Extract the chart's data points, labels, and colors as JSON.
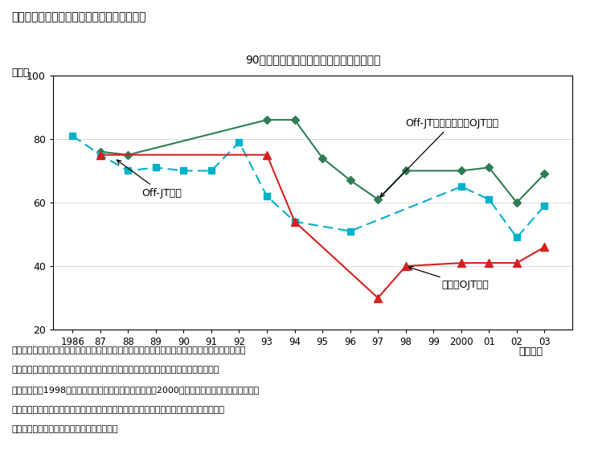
{
  "title": "第３－２－７図　職業教育訓練実施率の推移",
  "subtitle": "90年代に職業教育訓練実施率は大きく低下",
  "ylabel": "（％）",
  "xlabel": "（年度）",
  "ylim": [
    20,
    100
  ],
  "yticks": [
    20,
    40,
    60,
    80,
    100
  ],
  "green_line": {
    "label": "Off-JTまたは計画的OJT実施",
    "color": "#2e7d54",
    "x": [
      1987,
      1988,
      1993,
      1994,
      1995,
      1996,
      1997,
      1998,
      2000,
      2001,
      2002,
      2003
    ],
    "y": [
      76,
      75,
      86,
      86,
      74,
      67,
      61,
      70,
      70,
      71,
      60,
      69
    ]
  },
  "cyan_line": {
    "label": "Off-JT実施",
    "color": "#00b0c8",
    "x": [
      1986,
      1987,
      1988,
      1989,
      1990,
      1991,
      1992,
      1993,
      1994,
      1996,
      2000,
      2001,
      2002,
      2003
    ],
    "y": [
      81,
      75,
      70,
      71,
      70,
      70,
      79,
      62,
      54,
      51,
      65,
      61,
      49,
      59
    ]
  },
  "red_line": {
    "label": "計画的OJT実施",
    "color": "#d42020",
    "x": [
      1987,
      1993,
      1994,
      1997,
      1998,
      2000,
      2001,
      2002,
      2003
    ],
    "y": [
      75,
      75,
      54,
      30,
      40,
      41,
      41,
      41,
      46
    ]
  },
  "ann_offjt_label": "Off-JT実施",
  "ann_green_label": "Off-JTまたは計画的OJT実施",
  "ann_red_label": "計画的OJT実施",
  "note_lines": [
    "（備考）１．厚生労働省「能力開発基本調査」、旧労働省「民間教育訓練実態調査」により作成。",
    "　　　　２．項目ごとに調査を行っていない年度があるため、そのままつないでいる。",
    "　　　　３．1998年までが「民間教育訓練実態調査」、2000年度以降が「能力開発基本調査」",
    "　　　　　　による。両者は調査方法等が異なるため単純な比較はできないことに注意。",
    "　　　　４．一部暦年単位のデータを含む。"
  ]
}
